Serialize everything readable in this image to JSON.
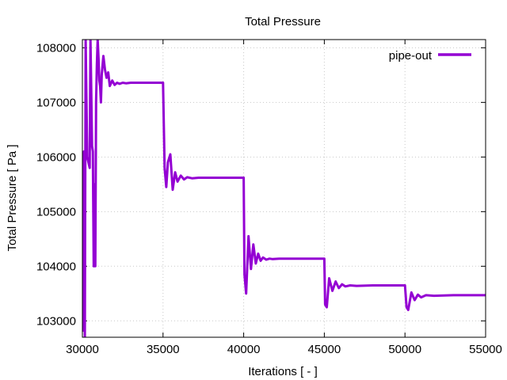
{
  "chart_data": {
    "type": "line",
    "title": "Total Pressure",
    "xlabel": "Iterations [ - ]",
    "ylabel": "Total Pressure [ Pa ]",
    "xlim": [
      30000,
      55000
    ],
    "ylim": [
      102700,
      108150
    ],
    "xticks": [
      30000,
      35000,
      40000,
      45000,
      50000,
      55000
    ],
    "yticks": [
      103000,
      104000,
      105000,
      106000,
      107000,
      108000
    ],
    "xtick_labels": [
      "30000",
      "35000",
      "40000",
      "45000",
      "50000",
      "55000"
    ],
    "ytick_labels": [
      "103000",
      "104000",
      "105000",
      "106000",
      "107000",
      "108000"
    ],
    "grid": true,
    "legend_position": "top-right",
    "series": [
      {
        "name": "pipe-out",
        "color": "#9400d3",
        "x": [
          30000,
          30050,
          30100,
          30150,
          30200,
          30300,
          30450,
          30500,
          30550,
          30600,
          30650,
          30700,
          30750,
          30800,
          30850,
          30900,
          30950,
          31000,
          31050,
          31100,
          31150,
          31200,
          31300,
          31400,
          31500,
          31600,
          31700,
          31850,
          32000,
          32150,
          32300,
          32500,
          32700,
          33000,
          33500,
          34000,
          34500,
          35000,
          35100,
          35200,
          35300,
          35450,
          35600,
          35750,
          35900,
          36100,
          36300,
          36500,
          36800,
          37200,
          38000,
          39000,
          40000,
          40050,
          40150,
          40300,
          40450,
          40600,
          40750,
          40900,
          41050,
          41200,
          41400,
          41600,
          41800,
          42200,
          43000,
          44000,
          45000,
          45050,
          45150,
          45300,
          45500,
          45700,
          45900,
          46100,
          46300,
          46600,
          47000,
          48000,
          49000,
          50000,
          50100,
          50200,
          50400,
          50600,
          50800,
          51000,
          51300,
          51800,
          53000,
          55000
        ],
        "values": [
          102800,
          105800,
          106100,
          102700,
          108150,
          106000,
          105800,
          108150,
          107200,
          106200,
          106100,
          104000,
          105500,
          104000,
          107000,
          107700,
          108150,
          107800,
          107400,
          107300,
          107000,
          107500,
          107850,
          107600,
          107450,
          107550,
          107300,
          107400,
          107320,
          107360,
          107340,
          107360,
          107350,
          107360,
          107360,
          107360,
          107360,
          107360,
          105800,
          105450,
          105900,
          106050,
          105400,
          105720,
          105550,
          105660,
          105590,
          105630,
          105610,
          105620,
          105620,
          105620,
          105620,
          103850,
          103500,
          104550,
          103950,
          104400,
          104050,
          104230,
          104100,
          104160,
          104120,
          104140,
          104130,
          104140,
          104140,
          104140,
          104140,
          103300,
          103250,
          103780,
          103550,
          103720,
          103600,
          103670,
          103630,
          103650,
          103640,
          103650,
          103650,
          103650,
          103250,
          103200,
          103520,
          103380,
          103480,
          103430,
          103470,
          103460,
          103470,
          103470
        ]
      }
    ]
  }
}
